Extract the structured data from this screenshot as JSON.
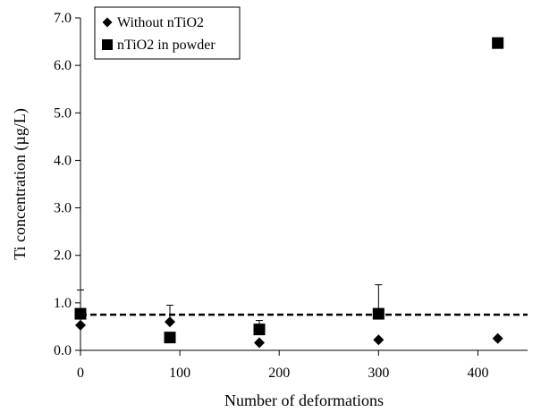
{
  "chart_data": {
    "type": "scatter",
    "xlabel": "Number of deformations",
    "ylabel": "Ti concentration (µg/L)",
    "xlim": [
      0,
      450
    ],
    "ylim": [
      0,
      7.0
    ],
    "x_ticks": [
      0,
      100,
      200,
      300,
      400
    ],
    "y_ticks": [
      0.0,
      1.0,
      2.0,
      3.0,
      4.0,
      5.0,
      6.0,
      7.0
    ],
    "x_tick_labels": [
      "0",
      "100",
      "200",
      "300",
      "400"
    ],
    "y_tick_labels": [
      "0.0",
      "1.0",
      "2.0",
      "3.0",
      "4.0",
      "5.0",
      "6.0",
      "7.0"
    ],
    "grid": false,
    "legend_position": "top-left",
    "reference_line": {
      "style": "dashed",
      "y": 0.75,
      "color": "#000000"
    },
    "series": [
      {
        "name": "Without nTiO2",
        "marker": "diamond",
        "color": "#000000",
        "points": [
          {
            "x": 0,
            "y": 0.53
          },
          {
            "x": 90,
            "y": 0.6
          },
          {
            "x": 180,
            "y": 0.16
          },
          {
            "x": 300,
            "y": 0.22
          },
          {
            "x": 420,
            "y": 0.25
          }
        ]
      },
      {
        "name": "nTiO2 in powder",
        "marker": "square",
        "color": "#000000",
        "points": [
          {
            "x": 0,
            "y": 0.77,
            "err": 0.5
          },
          {
            "x": 90,
            "y": 0.27
          },
          {
            "x": 180,
            "y": 0.44,
            "err": 0.19
          },
          {
            "x": 300,
            "y": 0.77,
            "err": 0.61
          },
          {
            "x": 420,
            "y": 6.47
          }
        ]
      }
    ],
    "error_bars_upper": [
      {
        "x": 90,
        "y": 0.6,
        "err": 0.35
      }
    ]
  }
}
